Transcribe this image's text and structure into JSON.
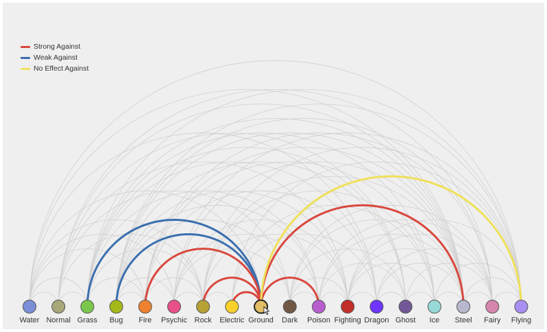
{
  "legend": [
    {
      "label": "Strong Against",
      "color": "#d9473e",
      "key": "strong"
    },
    {
      "label": "Weak Against",
      "color": "#3b6fae",
      "key": "weak"
    },
    {
      "label": "No Effect Against",
      "color": "#efe05a",
      "key": "noeffect"
    }
  ],
  "colors": {
    "background": "#efefef",
    "faint_edge": "#cfcfcf",
    "node_stroke": "#555555"
  },
  "nodes": [
    {
      "name": "Water",
      "color": "#7a8fd8"
    },
    {
      "name": "Normal",
      "color": "#a8a77a"
    },
    {
      "name": "Grass",
      "color": "#7ac74c"
    },
    {
      "name": "Bug",
      "color": "#a6b91a"
    },
    {
      "name": "Fire",
      "color": "#ee8130"
    },
    {
      "name": "Psychic",
      "color": "#e8508a"
    },
    {
      "name": "Rock",
      "color": "#b6a136"
    },
    {
      "name": "Electric",
      "color": "#f7d02c"
    },
    {
      "name": "Ground",
      "color": "#e2bf65"
    },
    {
      "name": "Dark",
      "color": "#705746"
    },
    {
      "name": "Poison",
      "color": "#b85fd0"
    },
    {
      "name": "Fighting",
      "color": "#c22e28"
    },
    {
      "name": "Dragon",
      "color": "#6f35fc"
    },
    {
      "name": "Ghost",
      "color": "#735797"
    },
    {
      "name": "Ice",
      "color": "#96d9d6"
    },
    {
      "name": "Steel",
      "color": "#b7b7ce"
    },
    {
      "name": "Fairy",
      "color": "#d685ad"
    },
    {
      "name": "Flying",
      "color": "#a98ff3"
    }
  ],
  "selected_node": "Ground",
  "highlighted_edges": [
    {
      "source": "Ground",
      "target": "Grass",
      "relation": "weak"
    },
    {
      "source": "Ground",
      "target": "Bug",
      "relation": "weak"
    },
    {
      "source": "Ground",
      "target": "Fire",
      "relation": "strong"
    },
    {
      "source": "Ground",
      "target": "Rock",
      "relation": "strong"
    },
    {
      "source": "Ground",
      "target": "Electric",
      "relation": "strong"
    },
    {
      "source": "Ground",
      "target": "Poison",
      "relation": "strong"
    },
    {
      "source": "Ground",
      "target": "Steel",
      "relation": "strong"
    },
    {
      "source": "Ground",
      "target": "Flying",
      "relation": "noeffect"
    }
  ],
  "background_edges": [
    [
      "Water",
      "Grass"
    ],
    [
      "Water",
      "Fire"
    ],
    [
      "Water",
      "Rock"
    ],
    [
      "Water",
      "Ground"
    ],
    [
      "Water",
      "Dragon"
    ],
    [
      "Water",
      "Steel"
    ],
    [
      "Normal",
      "Rock"
    ],
    [
      "Normal",
      "Ghost"
    ],
    [
      "Normal",
      "Steel"
    ],
    [
      "Normal",
      "Fighting"
    ],
    [
      "Grass",
      "Fire"
    ],
    [
      "Grass",
      "Rock"
    ],
    [
      "Grass",
      "Poison"
    ],
    [
      "Grass",
      "Dragon"
    ],
    [
      "Grass",
      "Steel"
    ],
    [
      "Grass",
      "Flying"
    ],
    [
      "Bug",
      "Fire"
    ],
    [
      "Bug",
      "Psychic"
    ],
    [
      "Bug",
      "Dark"
    ],
    [
      "Bug",
      "Poison"
    ],
    [
      "Bug",
      "Fighting"
    ],
    [
      "Bug",
      "Ghost"
    ],
    [
      "Bug",
      "Steel"
    ],
    [
      "Bug",
      "Fairy"
    ],
    [
      "Bug",
      "Flying"
    ],
    [
      "Fire",
      "Rock"
    ],
    [
      "Fire",
      "Dragon"
    ],
    [
      "Fire",
      "Ice"
    ],
    [
      "Fire",
      "Steel"
    ],
    [
      "Psychic",
      "Poison"
    ],
    [
      "Psychic",
      "Fighting"
    ],
    [
      "Psychic",
      "Dark"
    ],
    [
      "Psychic",
      "Steel"
    ],
    [
      "Rock",
      "Fighting"
    ],
    [
      "Rock",
      "Ice"
    ],
    [
      "Rock",
      "Steel"
    ],
    [
      "Rock",
      "Flying"
    ],
    [
      "Electric",
      "Dragon"
    ],
    [
      "Electric",
      "Flying"
    ],
    [
      "Dark",
      "Fighting"
    ],
    [
      "Dark",
      "Ghost"
    ],
    [
      "Dark",
      "Fairy"
    ],
    [
      "Poison",
      "Ghost"
    ],
    [
      "Poison",
      "Steel"
    ],
    [
      "Poison",
      "Fairy"
    ],
    [
      "Fighting",
      "Ice"
    ],
    [
      "Fighting",
      "Steel"
    ],
    [
      "Fighting",
      "Fairy"
    ],
    [
      "Fighting",
      "Flying"
    ],
    [
      "Dragon",
      "Steel"
    ],
    [
      "Dragon",
      "Fairy"
    ],
    [
      "Ghost",
      "Fairy"
    ],
    [
      "Ice",
      "Steel"
    ],
    [
      "Ice",
      "Flying"
    ],
    [
      "Steel",
      "Fairy"
    ],
    [
      "Water",
      "Normal"
    ],
    [
      "Normal",
      "Grass"
    ],
    [
      "Psychic",
      "Rock"
    ],
    [
      "Rock",
      "Electric"
    ],
    [
      "Dark",
      "Poison"
    ],
    [
      "Poison",
      "Fighting"
    ],
    [
      "Fighting",
      "Dragon"
    ],
    [
      "Dragon",
      "Ghost"
    ],
    [
      "Ghost",
      "Ice"
    ],
    [
      "Steel",
      "Flying"
    ],
    [
      "Fairy",
      "Flying"
    ],
    [
      "Water",
      "Psychic"
    ],
    [
      "Normal",
      "Dark"
    ],
    [
      "Grass",
      "Ghost"
    ],
    [
      "Fire",
      "Fairy"
    ],
    [
      "Psychic",
      "Flying"
    ],
    [
      "Electric",
      "Ice"
    ],
    [
      "Dark",
      "Steel"
    ],
    [
      "Water",
      "Flying"
    ],
    [
      "Normal",
      "Fairy"
    ],
    [
      "Grass",
      "Ice"
    ]
  ]
}
